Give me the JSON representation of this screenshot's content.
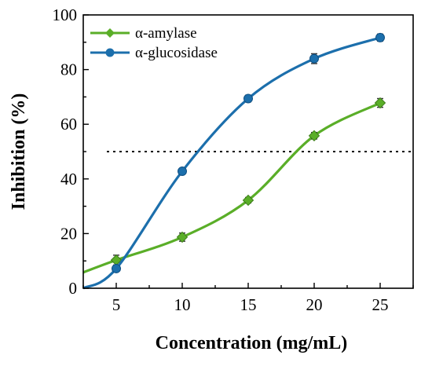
{
  "chart_data": {
    "type": "line",
    "title": "",
    "xlabel": "Concentration (mg/mL)",
    "ylabel": "Inhibition (%)",
    "xlim": [
      2.5,
      27.5
    ],
    "ylim": [
      0,
      100
    ],
    "xticks": [
      5,
      10,
      15,
      20,
      25
    ],
    "yticks": [
      0,
      20,
      40,
      60,
      80,
      100
    ],
    "x": [
      5,
      10,
      15,
      20,
      25
    ],
    "reference_line_y": 50,
    "legend_position": "top-left",
    "series": [
      {
        "name": "α-amylase",
        "marker": "diamond",
        "color": "#5aae28",
        "values": [
          10.3,
          18.7,
          32.2,
          55.8,
          67.8
        ],
        "errors": [
          1.8,
          1.5,
          1.0,
          1.2,
          1.6
        ],
        "curve_start": 5.8,
        "curve_end_x": 25
      },
      {
        "name": "α-glucosidase",
        "marker": "circle",
        "color": "#1c6fac",
        "values": [
          7.2,
          42.8,
          69.4,
          84.0,
          91.7
        ],
        "errors": [
          1.0,
          1.0,
          1.2,
          1.8,
          1.3
        ],
        "curve_start": 0,
        "curve_end_x": 25
      }
    ]
  }
}
